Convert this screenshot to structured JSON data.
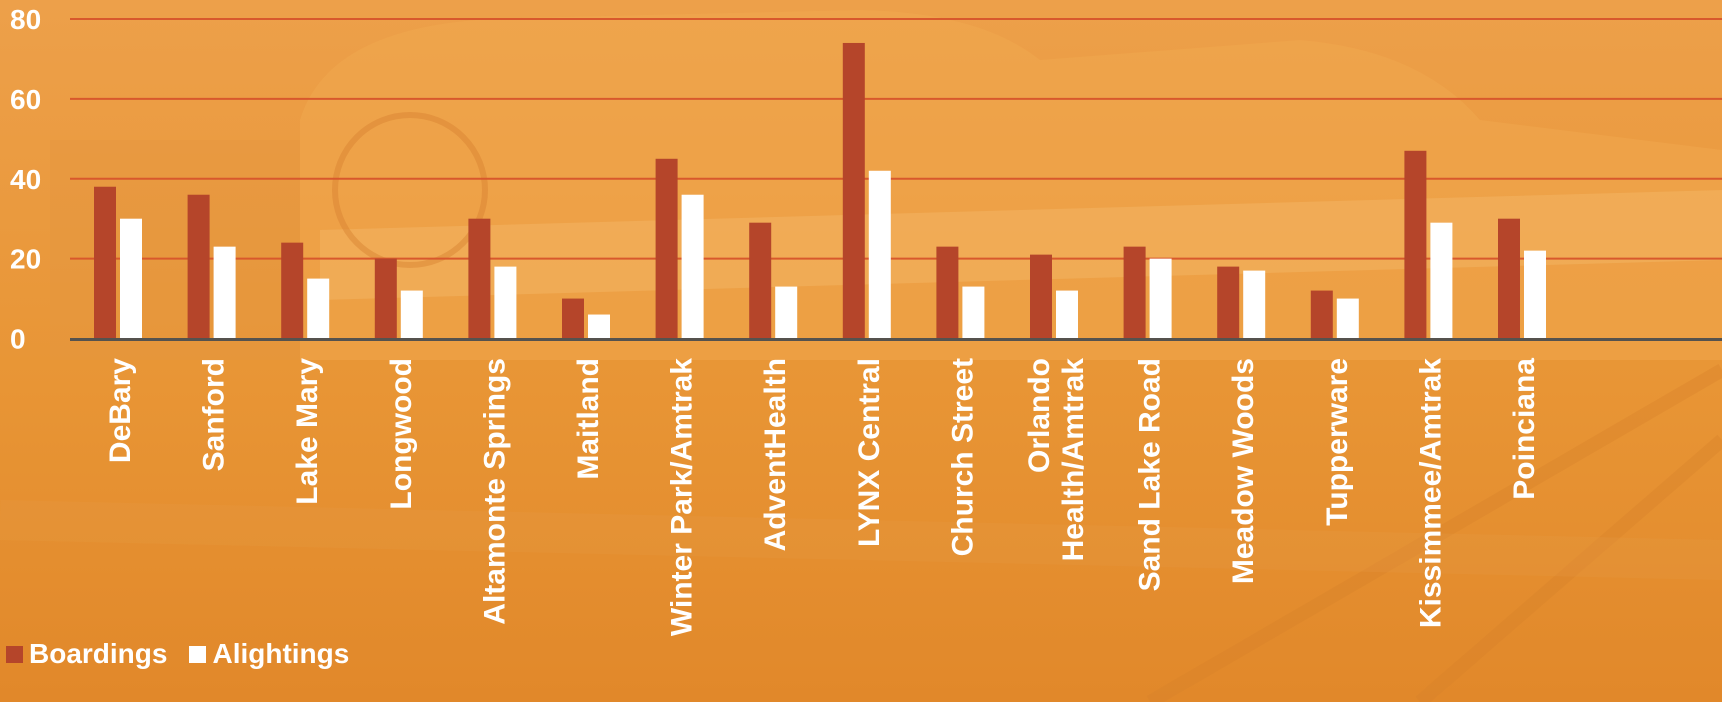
{
  "colors": {
    "background": "#e8932e",
    "boardings": "#b5452a",
    "alightings": "#ffffff",
    "gridline": "#d8582c",
    "axis": "#55524e",
    "text": "#ffffff"
  },
  "chart_data": {
    "type": "bar",
    "title": "",
    "xlabel": "",
    "ylabel": "",
    "ylim": [
      0,
      80
    ],
    "yticks": [
      0,
      20,
      40,
      60,
      80
    ],
    "grid": true,
    "legend_position": "bottom-left",
    "categories": [
      "DeBary",
      "Sanford",
      "Lake Mary",
      "Longwood",
      "Altamonte Springs",
      "Maitland",
      "Winter Park/Amtrak",
      "AdventHealth",
      "LYNX Central",
      "Church Street",
      "Orlando Health/Amtrak",
      "Sand Lake Road",
      "Meadow Woods",
      "Tupperware",
      "Kissimmee/Amtrak",
      "Poinciana"
    ],
    "series": [
      {
        "name": "Boardings",
        "color": "#b5452a",
        "values": [
          38,
          36,
          24,
          20,
          30,
          10,
          45,
          29,
          74,
          23,
          21,
          23,
          18,
          12,
          47,
          30
        ]
      },
      {
        "name": "Alightings",
        "color": "#ffffff",
        "values": [
          30,
          23,
          15,
          12,
          18,
          6,
          36,
          13,
          42,
          13,
          12,
          20,
          17,
          10,
          29,
          22
        ]
      }
    ]
  },
  "legend": {
    "boardings_label": "Boardings",
    "alightings_label": "Alightings"
  }
}
